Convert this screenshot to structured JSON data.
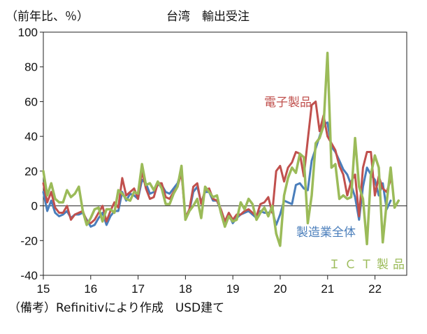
{
  "chart_data": {
    "type": "line",
    "title": "台湾　輸出受注",
    "ylabel": "（前年比、％）",
    "source_note": "（備考）Refinitivにより作成　USD建て",
    "ylim": [
      -40,
      100
    ],
    "yticks": [
      -40,
      -20,
      0,
      20,
      40,
      60,
      80,
      100
    ],
    "xlim": [
      2015.0,
      2022.67
    ],
    "xticks": [
      {
        "value": 2015,
        "label": "15"
      },
      {
        "value": 2016,
        "label": "16"
      },
      {
        "value": 2017,
        "label": "17"
      },
      {
        "value": 2018,
        "label": "18"
      },
      {
        "value": 2019,
        "label": "19"
      },
      {
        "value": 2020,
        "label": "20"
      },
      {
        "value": 2021,
        "label": "21"
      },
      {
        "value": 2022,
        "label": "22"
      }
    ],
    "grid": false,
    "series": [
      {
        "name": "製造業全体",
        "color": "#4a7ebb",
        "label_color": "#4a7ebb",
        "start": 2015.0,
        "step": 0.0833,
        "values": [
          8,
          -3,
          3,
          -4,
          -6,
          -5,
          -3,
          -7,
          -5,
          -5,
          -4,
          -8,
          -12,
          -11,
          -7,
          -4,
          -11,
          -6,
          -3,
          -3,
          8,
          3,
          7,
          6,
          4,
          15,
          13,
          7,
          8,
          12,
          12,
          8,
          7,
          10,
          13,
          20,
          -6,
          -3,
          8,
          11,
          2,
          8,
          8,
          3,
          3,
          -3,
          -10,
          -5,
          -10,
          -7,
          -5,
          -4,
          -3,
          -5,
          -7,
          -3,
          -4,
          -4,
          -3,
          -11,
          -5,
          3,
          2,
          1,
          12,
          13,
          10,
          9,
          26,
          33,
          40,
          47,
          48,
          34,
          31,
          26,
          21,
          18,
          12,
          5,
          -8,
          11,
          22,
          18,
          15,
          6,
          13,
          -2,
          3
        ]
      },
      {
        "name": "電子製品",
        "color": "#c0504d",
        "label_color": "#c0504d",
        "start": 2015.0,
        "step": 0.0833,
        "values": [
          13,
          2,
          8,
          -1,
          -4,
          -4,
          0,
          -8,
          -5,
          -4,
          -3,
          -9,
          -10,
          -8,
          -4,
          0,
          -9,
          -3,
          2,
          -1,
          16,
          6,
          8,
          10,
          4,
          20,
          10,
          4,
          5,
          13,
          13,
          5,
          4,
          8,
          11,
          19,
          -7,
          -2,
          11,
          13,
          1,
          9,
          10,
          4,
          3,
          -2,
          -9,
          -4,
          -8,
          -5,
          -5,
          -3,
          -2,
          -4,
          -6,
          1,
          2,
          5,
          -4,
          20,
          23,
          14,
          22,
          25,
          31,
          30,
          17,
          38,
          58,
          60,
          43,
          52,
          40,
          36,
          32,
          23,
          18,
          6,
          14,
          18,
          -6,
          22,
          31,
          31,
          6,
          17,
          10,
          8,
          15
        ]
      },
      {
        "name": "ＩＣＴ製品",
        "color": "#9bbb59",
        "label_color": "#9bbb59",
        "start": 2015.0,
        "step": 0.0833,
        "values": [
          20,
          6,
          13,
          4,
          2,
          2,
          9,
          5,
          7,
          11,
          -3,
          -11,
          -7,
          -2,
          -1,
          -9,
          -2,
          -2,
          -4,
          9,
          7,
          4,
          3,
          8,
          7,
          24,
          12,
          13,
          9,
          14,
          10,
          1,
          1,
          7,
          11,
          23,
          -8,
          -3,
          0,
          4,
          -7,
          11,
          8,
          5,
          6,
          -4,
          -12,
          -6,
          -9,
          -8,
          2,
          -2,
          4,
          1,
          -8,
          -4,
          -1,
          -6,
          0,
          -16,
          -23,
          6,
          16,
          22,
          19,
          30,
          28,
          -10,
          6,
          36,
          39,
          46,
          88,
          22,
          24,
          4,
          6,
          4,
          5,
          39,
          11,
          4,
          -22,
          18,
          29,
          22,
          -21,
          2,
          22,
          -1,
          3
        ]
      }
    ],
    "series_labels": [
      {
        "series": "電子製品",
        "text": "電子製品"
      },
      {
        "series": "製造業全体",
        "text": "製造業全体"
      },
      {
        "series": "ＩＣＴ製品",
        "text": "ＩＣＴ製品"
      }
    ]
  }
}
